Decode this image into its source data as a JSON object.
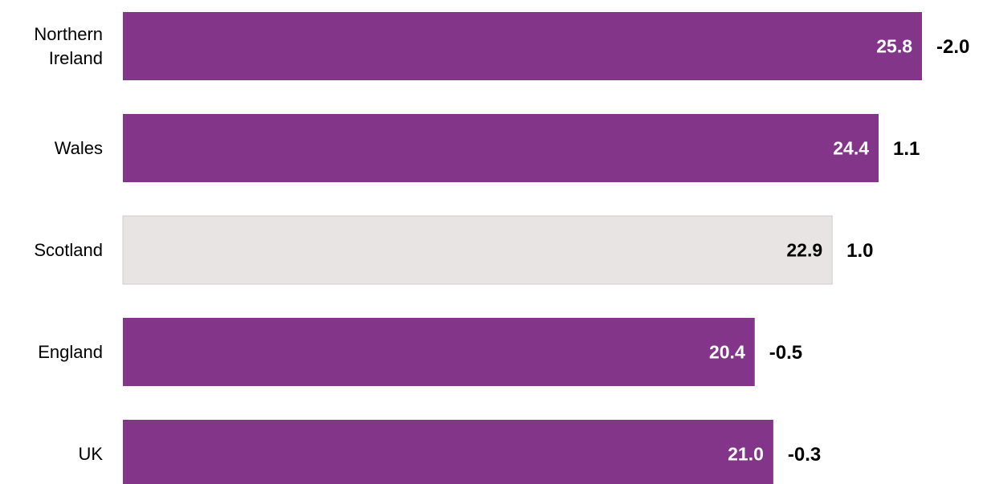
{
  "chart_data": {
    "type": "bar",
    "orientation": "horizontal",
    "categories": [
      "Northern Ireland",
      "Wales",
      "Scotland",
      "England",
      "UK"
    ],
    "values": [
      25.8,
      24.4,
      22.9,
      20.4,
      21.0
    ],
    "value_labels": [
      "25.8",
      "24.4",
      "22.9",
      "20.4",
      "21.0"
    ],
    "colors": [
      "#823589",
      "#823589",
      "#e8e4e4",
      "#823589",
      "#823589"
    ],
    "label_colors": [
      "#ffffff",
      "#ffffff",
      "#000000",
      "#ffffff",
      "#ffffff"
    ],
    "changes": [
      -2.0,
      1.1,
      1.0,
      -0.5,
      -0.3
    ],
    "change_labels": [
      "-2.0",
      "1.1",
      "1.0",
      "-0.5",
      "-0.3"
    ]
  }
}
